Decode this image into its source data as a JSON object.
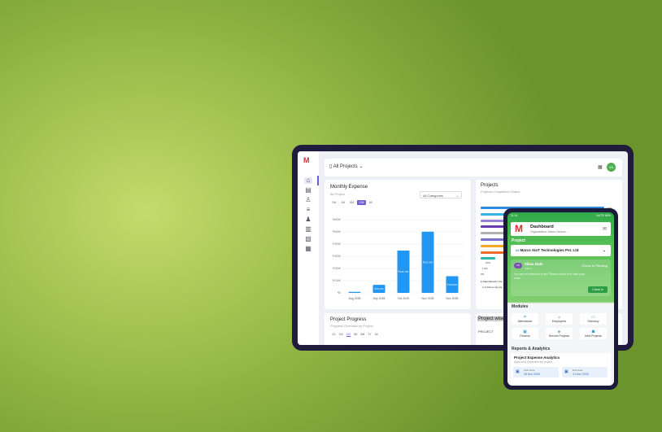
{
  "tablet": {
    "logo": "M",
    "sidebar": {
      "icons": [
        "home-icon",
        "document-icon",
        "user-icon",
        "list-icon",
        "users-icon",
        "trash-icon",
        "report-icon",
        "calendar-icon"
      ]
    },
    "header": {
      "project_selector": "All Projects",
      "avatar_initials": "VN"
    },
    "monthly_expense": {
      "title": "Monthly Expense",
      "subtitle": "All Project",
      "category_select": "All Categories",
      "ranges": [
        "1W",
        "1M",
        "6M",
        "12M",
        "All"
      ],
      "active_range": "12M"
    },
    "projects": {
      "title": "Projects",
      "subtitle": "Projects Completion Status",
      "legend": [
        "Raja Bahadur Inte...",
        "Kohinoor Sports..."
      ],
      "bar_colors": [
        "#2f8ae6",
        "#36b4e8",
        "#9b7fd8",
        "#6a3ab0",
        "#b0b0b0",
        "#7a6fd0",
        "#f5a623",
        "#f06a2a",
        "#2ab7a9"
      ],
      "bar_values": [
        100,
        95,
        88,
        82,
        75,
        70,
        60,
        55,
        12,
        2,
        0
      ],
      "labels": [
        "100%",
        "10%",
        "1.6%",
        "0%"
      ]
    },
    "project_progress": {
      "title": "Project Progress",
      "subtitle": "Progress Overview by Project",
      "ranges": [
        "1D",
        "1W",
        "1M",
        "3M",
        "6M",
        "1Y",
        "All"
      ]
    },
    "project_wise": {
      "title": "Project wise E...",
      "column": "PROJECT"
    }
  },
  "chart_data": {
    "type": "bar",
    "title": "Monthly Expense",
    "categories": [
      "Aug 2025",
      "Sep 2025",
      "Oct 2025",
      "Nov 2025",
      "Dec 2025"
    ],
    "values": [
      8,
      65.42,
      346.73,
      501.41,
      136.57
    ],
    "data_labels": [
      "",
      "₹65.42K",
      "₹346.73K",
      "₹501.41K",
      "₹136.57K"
    ],
    "yticks": [
      "₹0",
      "₹100K",
      "₹200K",
      "₹300K",
      "₹400K",
      "₹500K",
      "₹600K"
    ],
    "ylim": [
      0,
      600
    ],
    "unit": "₹K",
    "grid": true,
    "color": "#2196f3"
  },
  "phone": {
    "status_time": "11:14",
    "status_right": "VoLTE 65%",
    "dashboard_title": "Dashboard",
    "organization": "Organization: Marco Secure ...",
    "project_label": "Project",
    "project_value": "Marco AIoT Technologies Pvt. Ltd",
    "user": {
      "initials": "VN",
      "name": "Vikas Nale",
      "role": "Admin",
      "status": "Check In Pending",
      "message": "You are not checked in yet. Please check in to start your work.",
      "button": "Check In"
    },
    "modules_title": "Modules",
    "modules": [
      {
        "label": "Attendance",
        "icon": "⌗"
      },
      {
        "label": "Employees",
        "icon": "☺"
      },
      {
        "label": "Directory",
        "icon": "▭"
      },
      {
        "label": "Finance",
        "icon": "▣"
      },
      {
        "label": "Service Projects",
        "icon": "◈"
      },
      {
        "label": "Infra Projects",
        "icon": "☗"
      }
    ],
    "reports_title": "Reports & Analytics",
    "analytics": {
      "title": "Project Expense Analytics",
      "subtitle": "Approved expenses by project",
      "start_label": "Start Date",
      "start_value": "28 Nov 2025",
      "end_label": "End Date",
      "end_value": "13 Dec 2025"
    }
  }
}
